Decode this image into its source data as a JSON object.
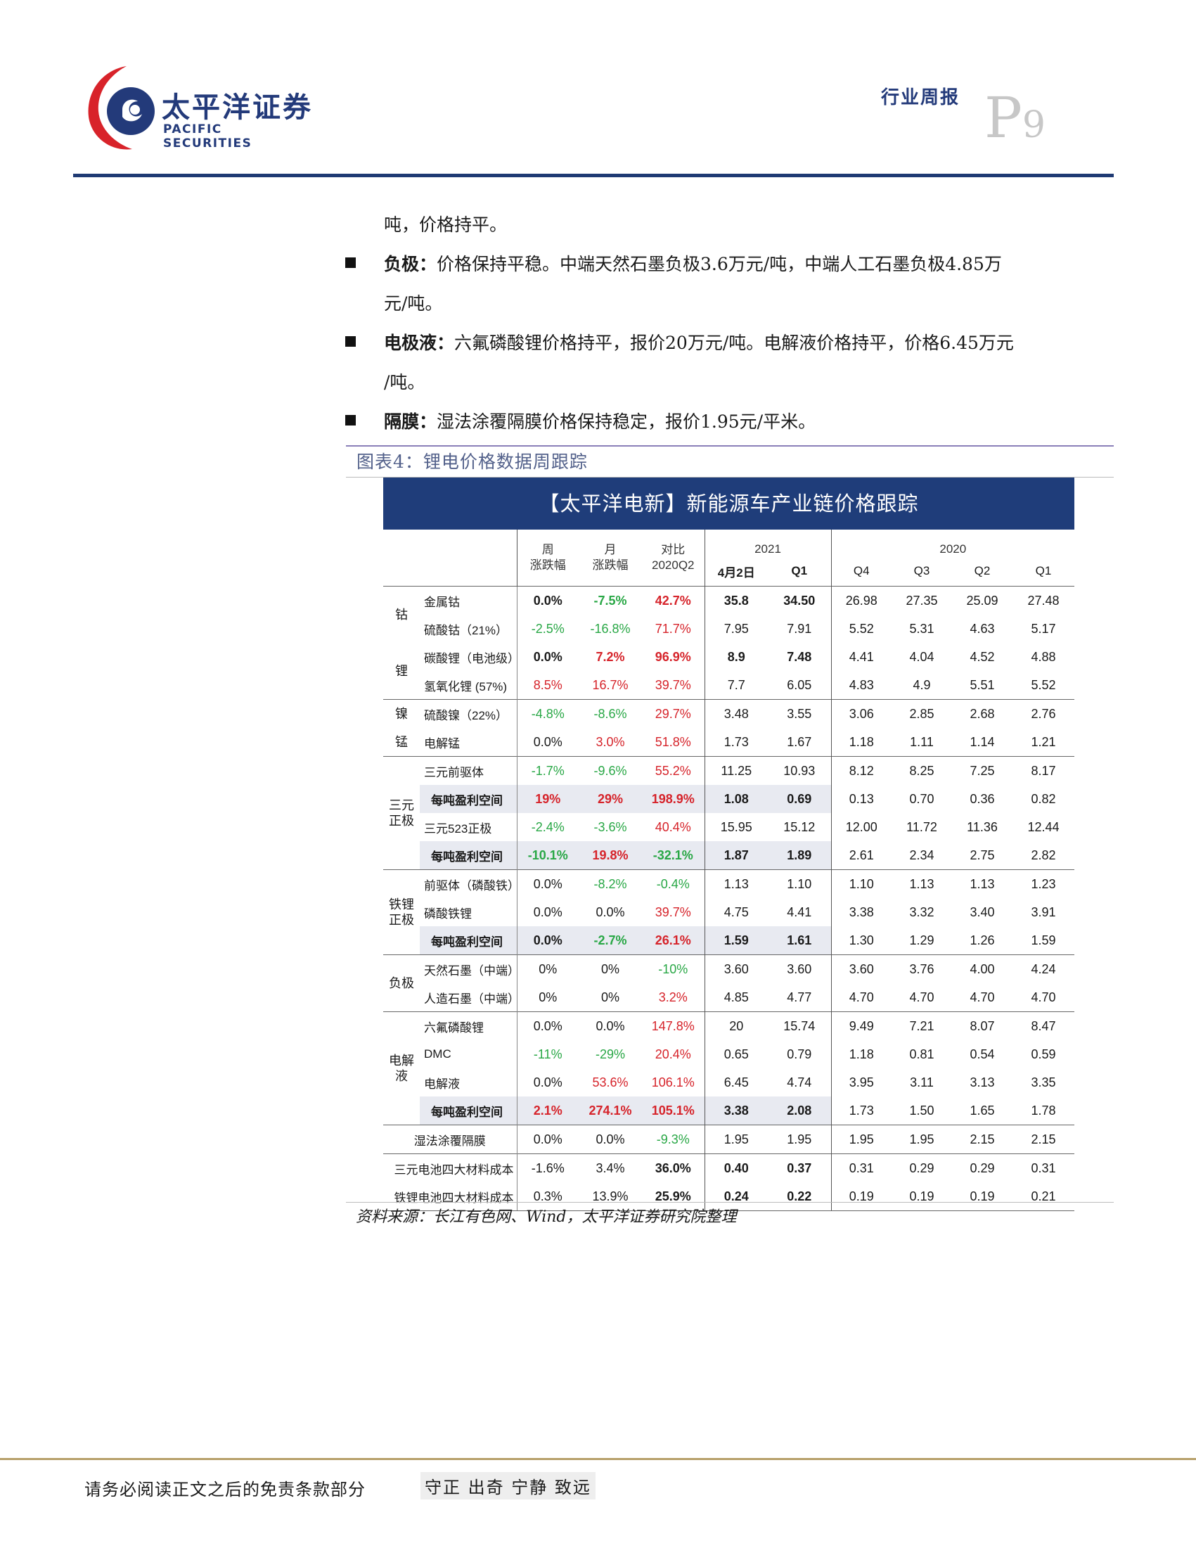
{
  "header": {
    "logo_cn": "太平洋证券",
    "logo_en": "PACIFIC SECURITIES",
    "report_type": "行业周报",
    "page_label": "P",
    "page_number": "9"
  },
  "body": {
    "line1": "吨，价格持平。",
    "bullets": [
      {
        "label": "负极：",
        "text": "价格保持平稳。中端天然石墨负极3.6万元/吨，中端人工石墨负极4.85万",
        "cont": "元/吨。"
      },
      {
        "label": "电极液：",
        "text": "六氟磷酸锂价格持平，报价20万元/吨。电解液价格持平，价格6.45万元",
        "cont": "/吨。"
      },
      {
        "label": "隔膜：",
        "text": "湿法涂覆隔膜价格保持稳定，报价1.95元/平米。",
        "cont": ""
      }
    ]
  },
  "figure": {
    "caption": "图表4：锂电价格数据周跟踪",
    "source": "资料来源：长江有色网、Wind，太平洋证券研究院整理"
  },
  "table": {
    "title": "【太平洋电新】新能源车产业链价格跟踪",
    "headers": {
      "week": "周\n涨跌幅",
      "month": "月\n涨跌幅",
      "yoy": "对比\n2020Q2",
      "year2021": "2021",
      "year2020": "2020",
      "cols": [
        "4月2日",
        "Q1",
        "Q4",
        "Q3",
        "Q2",
        "Q1"
      ]
    },
    "rows": [
      {
        "g": "钴",
        "name": "金属钴",
        "w": "0.0%",
        "m": "-7.5%",
        "y": "42.7%",
        "v": [
          "35.8",
          "34.50",
          "26.98",
          "27.35",
          "25.09",
          "27.48"
        ],
        "c": [
          "bl",
          "neg",
          "pos"
        ],
        "bold": true
      },
      {
        "g": "",
        "name": "硫酸钴（21%）",
        "w": "-2.5%",
        "m": "-16.8%",
        "y": "71.7%",
        "v": [
          "7.95",
          "7.91",
          "5.52",
          "5.31",
          "4.63",
          "5.17"
        ],
        "c": [
          "neg",
          "neg",
          "pos"
        ],
        "bold": false
      },
      {
        "g": "锂",
        "name": "碳酸锂（电池级）",
        "w": "0.0%",
        "m": "7.2%",
        "y": "96.9%",
        "v": [
          "8.9",
          "7.48",
          "4.41",
          "4.04",
          "4.52",
          "4.88"
        ],
        "c": [
          "bl",
          "pos",
          "pos"
        ],
        "bold": true
      },
      {
        "g": "",
        "name": "氢氧化锂 (57%)",
        "w": "8.5%",
        "m": "16.7%",
        "y": "39.7%",
        "v": [
          "7.7",
          "6.05",
          "4.83",
          "4.9",
          "5.51",
          "5.52"
        ],
        "c": [
          "pos",
          "pos",
          "pos"
        ],
        "bold": false
      },
      {
        "g": "镍",
        "name": "硫酸镍（22%）",
        "w": "-4.8%",
        "m": "-8.6%",
        "y": "29.7%",
        "v": [
          "3.48",
          "3.55",
          "3.06",
          "2.85",
          "2.68",
          "2.76"
        ],
        "c": [
          "neg",
          "neg",
          "pos"
        ],
        "bold": false
      },
      {
        "g": "锰",
        "name": "电解锰",
        "w": "0.0%",
        "m": "3.0%",
        "y": "51.8%",
        "v": [
          "1.73",
          "1.67",
          "1.18",
          "1.11",
          "1.14",
          "1.21"
        ],
        "c": [
          "bl",
          "pos",
          "pos"
        ],
        "bold": false
      },
      {
        "g": "",
        "name": "三元前驱体",
        "w": "-1.7%",
        "m": "-9.6%",
        "y": "55.2%",
        "v": [
          "11.25",
          "10.93",
          "8.12",
          "8.25",
          "7.25",
          "8.17"
        ],
        "c": [
          "neg",
          "neg",
          "pos"
        ],
        "bold": false
      },
      {
        "g": "三元\n正极",
        "name": "每吨盈利空间",
        "w": "19%",
        "m": "29%",
        "y": "198.9%",
        "v": [
          "1.08",
          "0.69",
          "0.13",
          "0.70",
          "0.36",
          "0.82"
        ],
        "c": [
          "pos",
          "pos",
          "pos"
        ],
        "bold": true,
        "hl": true
      },
      {
        "g": "",
        "name": "三元523正极",
        "w": "-2.4%",
        "m": "-3.6%",
        "y": "40.4%",
        "v": [
          "15.95",
          "15.12",
          "12.00",
          "11.72",
          "11.36",
          "12.44"
        ],
        "c": [
          "neg",
          "neg",
          "pos"
        ],
        "bold": false
      },
      {
        "g": "",
        "name": "每吨盈利空间",
        "w": "-10.1%",
        "m": "19.8%",
        "y": "-32.1%",
        "v": [
          "1.87",
          "1.89",
          "2.61",
          "2.34",
          "2.75",
          "2.82"
        ],
        "c": [
          "neg",
          "pos",
          "neg"
        ],
        "bold": true,
        "hl": true
      },
      {
        "g": "",
        "name": "前驱体（磷酸铁）",
        "w": "0.0%",
        "m": "-8.2%",
        "y": "-0.4%",
        "v": [
          "1.13",
          "1.10",
          "1.10",
          "1.13",
          "1.13",
          "1.23"
        ],
        "c": [
          "bl",
          "neg",
          "neg"
        ],
        "bold": false
      },
      {
        "g": "铁锂\n正极",
        "name": "磷酸铁锂",
        "w": "0.0%",
        "m": "0.0%",
        "y": "39.7%",
        "v": [
          "4.75",
          "4.41",
          "3.38",
          "3.32",
          "3.40",
          "3.91"
        ],
        "c": [
          "bl",
          "bl",
          "pos"
        ],
        "bold": false
      },
      {
        "g": "",
        "name": "每吨盈利空间",
        "w": "0.0%",
        "m": "-2.7%",
        "y": "26.1%",
        "v": [
          "1.59",
          "1.61",
          "1.30",
          "1.29",
          "1.26",
          "1.59"
        ],
        "c": [
          "bl",
          "neg",
          "pos"
        ],
        "bold": true,
        "hl": true
      },
      {
        "g": "负极",
        "name": "天然石墨（中端）",
        "w": "0%",
        "m": "0%",
        "y": "-10%",
        "v": [
          "3.60",
          "3.60",
          "3.60",
          "3.76",
          "4.00",
          "4.24"
        ],
        "c": [
          "bl",
          "bl",
          "neg"
        ],
        "bold": false
      },
      {
        "g": "",
        "name": "人造石墨（中端）",
        "w": "0%",
        "m": "0%",
        "y": "3.2%",
        "v": [
          "4.85",
          "4.77",
          "4.70",
          "4.70",
          "4.70",
          "4.70"
        ],
        "c": [
          "bl",
          "bl",
          "pos"
        ],
        "bold": false
      },
      {
        "g": "",
        "name": "六氟磷酸锂",
        "w": "0.0%",
        "m": "0.0%",
        "y": "147.8%",
        "v": [
          "20",
          "15.74",
          "9.49",
          "7.21",
          "8.07",
          "8.47"
        ],
        "c": [
          "bl",
          "bl",
          "pos"
        ],
        "bold": false
      },
      {
        "g": "电解液",
        "name": "DMC",
        "w": "-11%",
        "m": "-29%",
        "y": "20.4%",
        "v": [
          "0.65",
          "0.79",
          "1.18",
          "0.81",
          "0.54",
          "0.59"
        ],
        "c": [
          "neg",
          "neg",
          "pos"
        ],
        "bold": false
      },
      {
        "g": "",
        "name": "电解液",
        "w": "0.0%",
        "m": "53.6%",
        "y": "106.1%",
        "v": [
          "6.45",
          "4.74",
          "3.95",
          "3.11",
          "3.13",
          "3.35"
        ],
        "c": [
          "bl",
          "pos",
          "pos"
        ],
        "bold": false
      },
      {
        "g": "",
        "name": "每吨盈利空间",
        "w": "2.1%",
        "m": "274.1%",
        "y": "105.1%",
        "v": [
          "3.38",
          "2.08",
          "1.73",
          "1.50",
          "1.65",
          "1.78"
        ],
        "c": [
          "pos",
          "pos",
          "pos"
        ],
        "bold": true,
        "hl": true
      },
      {
        "g": "",
        "name": "湿法涂覆隔膜",
        "w": "0.0%",
        "m": "0.0%",
        "y": "-9.3%",
        "v": [
          "1.95",
          "1.95",
          "1.95",
          "1.95",
          "2.15",
          "2.15"
        ],
        "c": [
          "bl",
          "bl",
          "neg"
        ],
        "bold": false
      },
      {
        "g": "",
        "name": "三元电池四大材料成本",
        "w": "-1.6%",
        "m": "3.4%",
        "y": "36.0%",
        "v": [
          "0.40",
          "0.37",
          "0.31",
          "0.29",
          "0.29",
          "0.31"
        ],
        "c": [
          "bl",
          "bl",
          "bl"
        ],
        "bold": false,
        "ybold": true
      },
      {
        "g": "",
        "name": "铁锂电池四大材料成本",
        "w": "0.3%",
        "m": "13.9%",
        "y": "25.9%",
        "v": [
          "0.24",
          "0.22",
          "0.19",
          "0.19",
          "0.19",
          "0.21"
        ],
        "c": [
          "bl",
          "bl",
          "bl"
        ],
        "bold": false,
        "ybold": true
      }
    ]
  },
  "footer": {
    "disclaimer": "请务必阅读正文之后的免责条款部分",
    "motto": "守正 出奇 宁静 致远"
  },
  "colors": {
    "brand_blue": "#1f3d7a",
    "logo_red": "#d8232a",
    "positive": "#d6232a",
    "negative": "#28a745",
    "highlight_row": "#e8eaf1"
  }
}
